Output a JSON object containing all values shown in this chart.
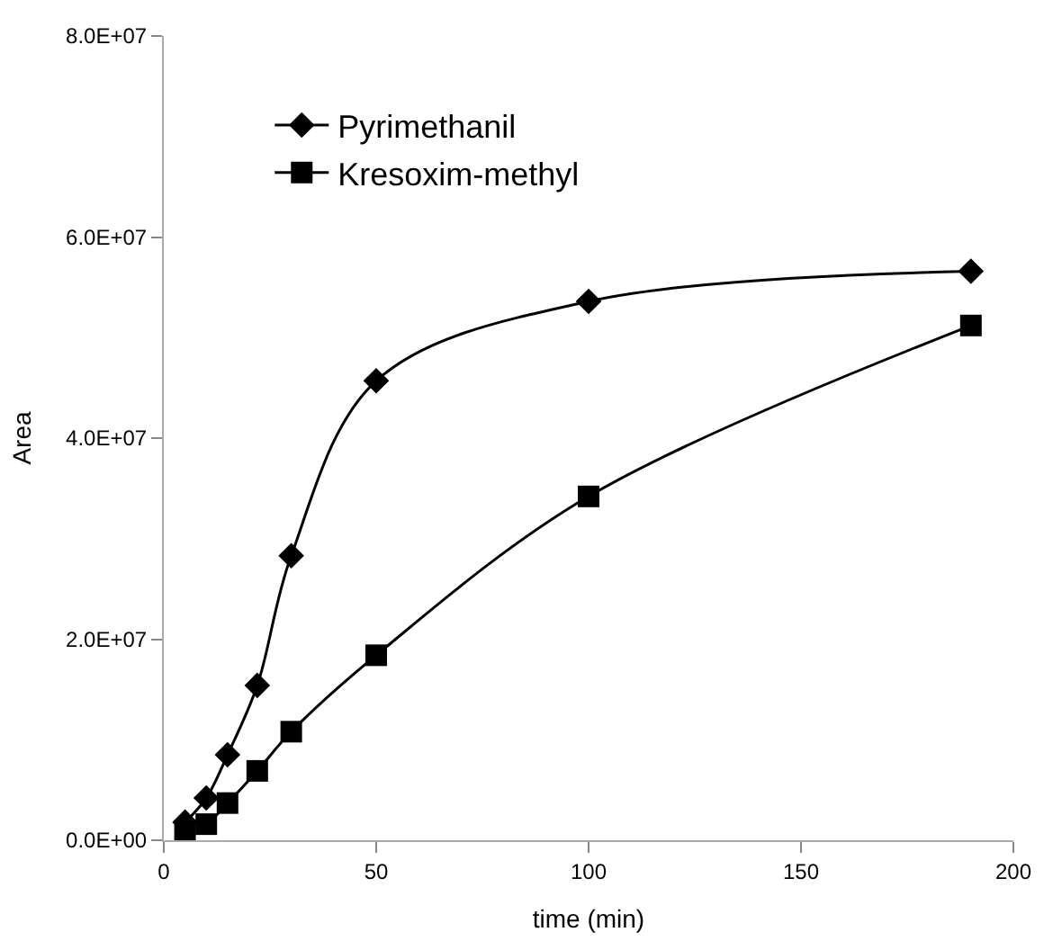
{
  "chart_data": {
    "type": "line",
    "xlabel": "time (min)",
    "ylabel": "Area",
    "x": [
      5,
      10,
      15,
      22,
      30,
      50,
      100,
      190
    ],
    "series": [
      {
        "name": "Pyrimethanil",
        "color": "#000000",
        "marker": "diamond",
        "values": [
          1800000,
          4200000,
          8500000,
          15400000,
          28300000,
          45700000,
          53600000,
          56600000
        ]
      },
      {
        "name": "Kresoxim-methyl",
        "color": "#000000",
        "marker": "square",
        "values": [
          900000,
          1600000,
          3700000,
          6900000,
          10800000,
          18400000,
          34200000,
          51200000
        ]
      }
    ],
    "xlim": [
      0,
      200
    ],
    "xticks": [
      0,
      50,
      100,
      150,
      200
    ],
    "ylim": [
      0,
      80000000
    ],
    "yticks": [
      {
        "value": 0,
        "label": "0.0E+00"
      },
      {
        "value": 20000000,
        "label": "2.0E+07"
      },
      {
        "value": 40000000,
        "label": "4.0E+07"
      },
      {
        "value": 60000000,
        "label": "6.0E+07"
      },
      {
        "value": 80000000,
        "label": "8.0E+07"
      }
    ],
    "legend": "top left",
    "line_style": "solid"
  }
}
